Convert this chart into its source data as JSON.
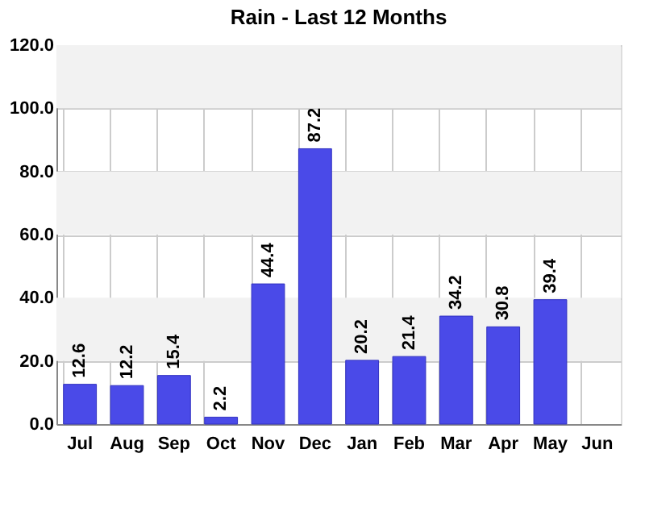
{
  "chart_data": {
    "type": "bar",
    "title": "Rain - Last 12 Months",
    "categories": [
      "Jul",
      "Aug",
      "Sep",
      "Oct",
      "Nov",
      "Dec",
      "Jan",
      "Feb",
      "Mar",
      "Apr",
      "May",
      "Jun"
    ],
    "values": [
      12.6,
      12.2,
      15.4,
      2.2,
      44.4,
      87.2,
      20.2,
      21.4,
      34.2,
      30.8,
      39.4,
      null
    ],
    "color": "#4a4ae8",
    "ylim": [
      0,
      120
    ],
    "yticks": [
      {
        "value": 0,
        "label": "0.0"
      },
      {
        "value": 20,
        "label": "20.0"
      },
      {
        "value": 40,
        "label": "40.0"
      },
      {
        "value": 60,
        "label": "60.0"
      },
      {
        "value": 80,
        "label": "80.0"
      },
      {
        "value": 100,
        "label": "100.0"
      },
      {
        "value": 120,
        "label": "120.0"
      }
    ],
    "bands": [
      {
        "axis": "y",
        "from": 20,
        "to": 40,
        "color": "#f2f2f2"
      },
      {
        "axis": "y",
        "from": 60,
        "to": 80,
        "color": "#f2f2f2"
      },
      {
        "axis": "y",
        "from": 100,
        "to": 120,
        "color": "#f2f2f2"
      }
    ],
    "data_labels": true,
    "grid": true
  }
}
